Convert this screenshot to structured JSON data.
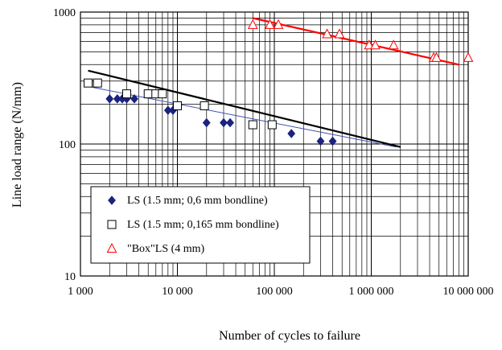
{
  "chart_data": {
    "type": "scatter",
    "x_scale": "log",
    "y_scale": "log",
    "xlim": [
      1000,
      10000000
    ],
    "ylim": [
      10,
      1000
    ],
    "xlabel": "Number of cycles to failure",
    "ylabel": "Line load range (N/mm)",
    "x_ticks": [
      "1 000",
      "10 000",
      "100 000",
      "1 000 000",
      "10 000 000"
    ],
    "y_ticks": [
      "10",
      "100",
      "1000"
    ],
    "grid": true,
    "legend_position": "bottom-left",
    "series": [
      {
        "name": "LS (1.5 mm; 0,6 mm bondline)",
        "marker": "diamond",
        "color": "#1a237e",
        "points": [
          [
            2000,
            220
          ],
          [
            2400,
            220
          ],
          [
            2700,
            220
          ],
          [
            3000,
            220
          ],
          [
            3600,
            220
          ],
          [
            8000,
            180
          ],
          [
            9000,
            180
          ],
          [
            20000,
            145
          ],
          [
            30000,
            145
          ],
          [
            35000,
            145
          ],
          [
            150000,
            120
          ],
          [
            300000,
            105
          ],
          [
            400000,
            105
          ]
        ],
        "trend": [
          [
            1300,
            270
          ],
          [
            1800000,
            95
          ]
        ]
      },
      {
        "name": "LS (1.5 mm; 0,165 mm bondline)",
        "marker": "square",
        "color": "#000000",
        "points": [
          [
            1200,
            290
          ],
          [
            1500,
            290
          ],
          [
            3000,
            240
          ],
          [
            5000,
            240
          ],
          [
            6000,
            240
          ],
          [
            7000,
            240
          ],
          [
            10000,
            195
          ],
          [
            19000,
            195
          ],
          [
            60000,
            140
          ],
          [
            95000,
            140
          ]
        ],
        "trend": [
          [
            1200,
            360
          ],
          [
            2000000,
            95
          ]
        ]
      },
      {
        "name": "\"Box\"LS (4 mm)",
        "marker": "triangle",
        "color": "#ff0000",
        "points": [
          [
            60000,
            800
          ],
          [
            90000,
            800
          ],
          [
            110000,
            800
          ],
          [
            350000,
            680
          ],
          [
            470000,
            680
          ],
          [
            950000,
            560
          ],
          [
            1100000,
            560
          ],
          [
            1700000,
            560
          ],
          [
            4400000,
            450
          ],
          [
            4700000,
            450
          ],
          [
            10000000,
            450
          ]
        ],
        "trend": [
          [
            60000,
            900
          ],
          [
            8000000,
            400
          ]
        ]
      }
    ]
  }
}
